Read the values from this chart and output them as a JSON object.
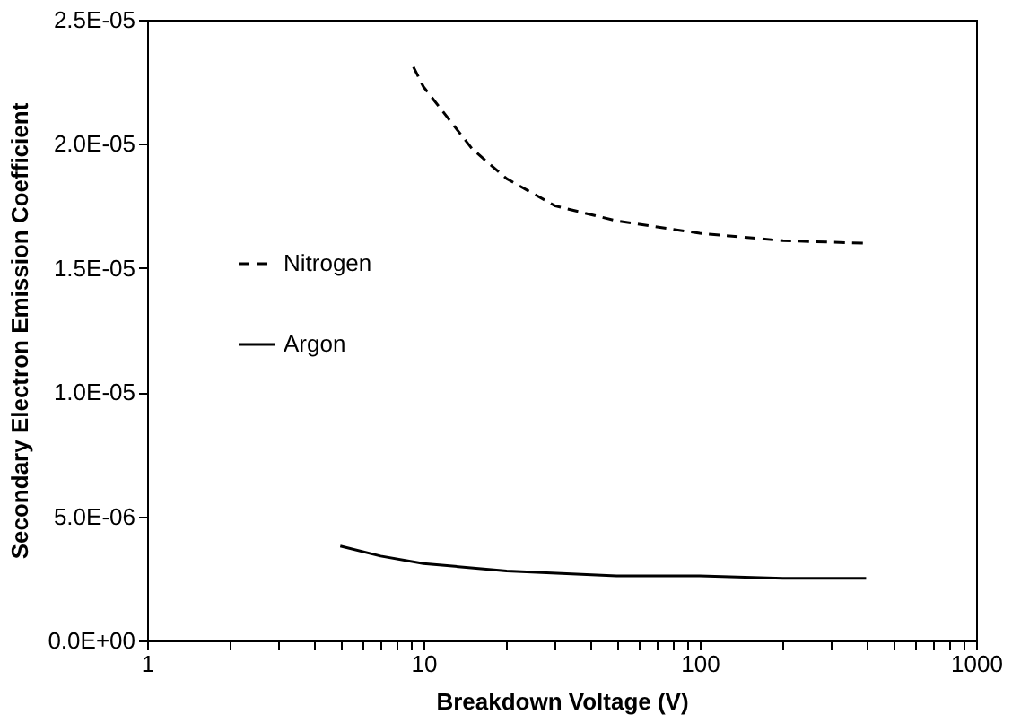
{
  "chart_data": {
    "type": "line",
    "xlabel": "Breakdown Voltage (V)",
    "ylabel": "Secondary Electron Emission Coefficient",
    "log": "x",
    "grid": false,
    "legend": "left",
    "marker": "none",
    "xlim": [
      1,
      1000
    ],
    "xticks": [
      1,
      {
        "value": 2,
        "label": null
      },
      {
        "value": 3,
        "label": null
      },
      {
        "value": 4,
        "label": null
      },
      {
        "value": 5,
        "label": null
      },
      {
        "value": 6,
        "label": null
      },
      {
        "value": 7,
        "label": null
      },
      {
        "value": 8,
        "label": null
      },
      {
        "value": 9,
        "label": null
      },
      10,
      {
        "value": 20,
        "label": null
      },
      {
        "value": 30,
        "label": null
      },
      {
        "value": 40,
        "label": null
      },
      {
        "value": 50,
        "label": null
      },
      {
        "value": 60,
        "label": null
      },
      {
        "value": 70,
        "label": null
      },
      {
        "value": 80,
        "label": null
      },
      {
        "value": 90,
        "label": null
      },
      100,
      {
        "value": 200,
        "label": null
      },
      {
        "value": 300,
        "label": null
      },
      {
        "value": 400,
        "label": null
      },
      {
        "value": 500,
        "label": null
      },
      {
        "value": 600,
        "label": null
      },
      {
        "value": 700,
        "label": null
      },
      {
        "value": 800,
        "label": null
      },
      {
        "value": 900,
        "label": null
      },
      1000
    ],
    "ylim": [
      0,
      2.5e-05
    ],
    "yticks": [
      {
        "value": 0,
        "label": "0.0E+00"
      },
      {
        "value": 5e-06,
        "label": "5.0E-06"
      },
      {
        "value": 1e-05,
        "label": "1.0E-05"
      },
      {
        "value": 1.5e-05,
        "label": "1.5E-05"
      },
      {
        "value": 2e-05,
        "label": "2.0E-05"
      },
      {
        "value": 2.5e-05,
        "label": "2.5E-05"
      }
    ],
    "series": [
      {
        "name": "Nitrogen",
        "color": "#000000",
        "line_style": "dashed",
        "x": [
          9.2,
          10,
          15,
          20,
          30,
          50,
          100,
          200,
          400
        ],
        "values": [
          2.31e-05,
          2.23e-05,
          1.98e-05,
          1.86e-05,
          1.75e-05,
          1.69e-05,
          1.64e-05,
          1.61e-05,
          1.6e-05
        ]
      },
      {
        "name": "Argon",
        "color": "#000000",
        "line_style": "solid",
        "x": [
          5,
          7,
          10,
          20,
          50,
          100,
          200,
          400
        ],
        "values": [
          3.8e-06,
          3.4e-06,
          3.1e-06,
          2.8e-06,
          2.6e-06,
          2.6e-06,
          2.5e-06,
          2.5e-06
        ]
      }
    ]
  }
}
